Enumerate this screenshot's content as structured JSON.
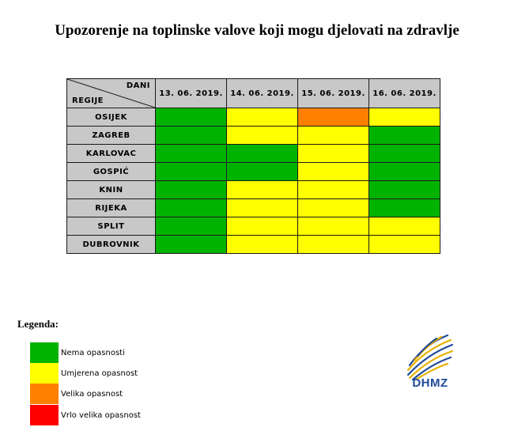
{
  "title": "Upozorenje na toplinske valove koji mogu djelovati na zdravlje",
  "table": {
    "corner_top": "DANI",
    "corner_bottom": "REGIJE",
    "dates": [
      "13. 06. 2019.",
      "14. 06. 2019.",
      "15. 06. 2019.",
      "16. 06. 2019."
    ],
    "rows": [
      {
        "region": "OSIJEK",
        "levels": [
          "green",
          "yellow",
          "orange",
          "yellow"
        ]
      },
      {
        "region": "ZAGREB",
        "levels": [
          "green",
          "yellow",
          "yellow",
          "green"
        ]
      },
      {
        "region": "KARLOVAC",
        "levels": [
          "green",
          "green",
          "yellow",
          "green"
        ]
      },
      {
        "region": "GOSPIĆ",
        "levels": [
          "green",
          "green",
          "yellow",
          "green"
        ]
      },
      {
        "region": "KNIN",
        "levels": [
          "green",
          "yellow",
          "yellow",
          "green"
        ]
      },
      {
        "region": "RIJEKA",
        "levels": [
          "green",
          "yellow",
          "yellow",
          "green"
        ]
      },
      {
        "region": "SPLIT",
        "levels": [
          "green",
          "yellow",
          "yellow",
          "yellow"
        ]
      },
      {
        "region": "DUBROVNIK",
        "levels": [
          "green",
          "yellow",
          "yellow",
          "yellow"
        ]
      }
    ]
  },
  "colors": {
    "green": "#00b300",
    "yellow": "#ffff00",
    "orange": "#ff8000",
    "red": "#ff0000",
    "header_gray": "#c8c8c8",
    "logo_blue": "#1f4a97",
    "logo_gold": "#e8b000"
  },
  "legend": {
    "title": "Legenda:",
    "items": [
      {
        "key": "green",
        "label": "Nema opasnosti"
      },
      {
        "key": "yellow",
        "label": "Umjerena opasnost"
      },
      {
        "key": "orange",
        "label": "Velika opasnost"
      },
      {
        "key": "red",
        "label": "Vrlo velika opasnost"
      }
    ]
  },
  "logo": {
    "text": "DHMZ",
    "icon": "dhmz-logo-icon"
  }
}
